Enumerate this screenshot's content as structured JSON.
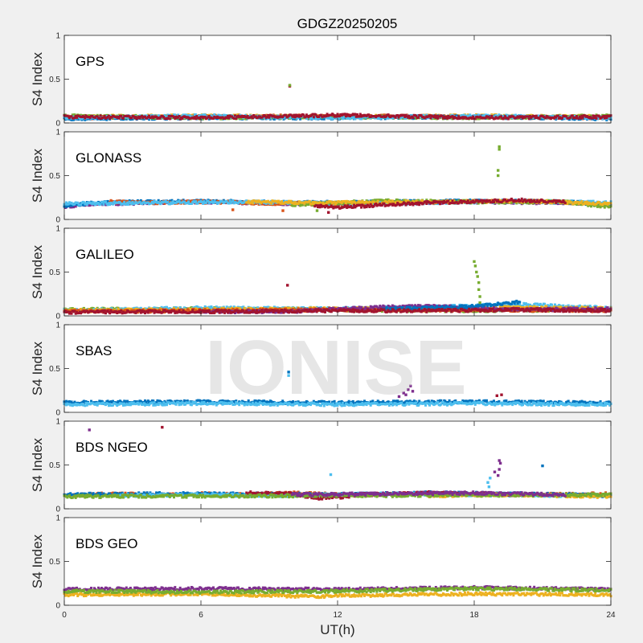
{
  "figure": {
    "title": "GDGZ20250205",
    "xlabel": "UT(h)",
    "watermark": "IONISE",
    "background": "#f0f0f0"
  },
  "chart_data": [
    {
      "type": "scatter",
      "panel": "GPS",
      "title": "GPS",
      "xlabel": "",
      "ylabel": "S4 Index",
      "xlim": [
        0,
        24
      ],
      "ylim": [
        0,
        1
      ],
      "xticks": [],
      "yticks": [
        0,
        0.5,
        1
      ],
      "ytick_labels": [
        "0",
        "0.5",
        "1"
      ],
      "grid": false,
      "baseline_segments": [
        {
          "color": "#EDB120",
          "x": [
            0,
            6,
            12,
            18,
            24
          ],
          "y": [
            0.07,
            0.08,
            0.07,
            0.08,
            0.07
          ]
        },
        {
          "color": "#D95319",
          "x": [
            0,
            6,
            12,
            18,
            24
          ],
          "y": [
            0.06,
            0.07,
            0.08,
            0.07,
            0.06
          ]
        },
        {
          "color": "#0072BD",
          "x": [
            0,
            6,
            12,
            18,
            24
          ],
          "y": [
            0.05,
            0.06,
            0.06,
            0.07,
            0.05
          ]
        },
        {
          "color": "#77AC30",
          "x": [
            0,
            6,
            12,
            18,
            24
          ],
          "y": [
            0.08,
            0.06,
            0.07,
            0.06,
            0.08
          ]
        },
        {
          "color": "#4DBEEE",
          "x": [
            0,
            6,
            12,
            18,
            24
          ],
          "y": [
            0.06,
            0.08,
            0.06,
            0.08,
            0.06
          ]
        },
        {
          "color": "#A2142F",
          "x": [
            0,
            6,
            12,
            18,
            24
          ],
          "y": [
            0.07,
            0.06,
            0.09,
            0.06,
            0.07
          ]
        }
      ],
      "outliers": [
        {
          "x": 9.9,
          "y": 0.42,
          "color": "#A2142F"
        },
        {
          "x": 9.9,
          "y": 0.43,
          "color": "#77AC30"
        }
      ]
    },
    {
      "type": "scatter",
      "panel": "GLONASS",
      "title": "GLONASS",
      "xlabel": "",
      "ylabel": "S4 Index",
      "xlim": [
        0,
        24
      ],
      "ylim": [
        0,
        1
      ],
      "xticks": [],
      "yticks": [
        0,
        0.5,
        1
      ],
      "ytick_labels": [
        "0",
        "0.5",
        "1"
      ],
      "grid": false,
      "baseline_segments": [
        {
          "color": "#7E2F8E",
          "x": [
            0,
            2,
            4,
            6,
            10,
            14,
            18,
            22,
            24
          ],
          "y": [
            0.15,
            0.18,
            0.19,
            0.2,
            0.18,
            0.19,
            0.2,
            0.19,
            0.18
          ]
        },
        {
          "color": "#0072BD",
          "x": [
            0,
            2,
            4,
            6,
            10,
            14,
            18,
            22,
            24
          ],
          "y": [
            0.16,
            0.2,
            0.2,
            0.21,
            0.19,
            0.2,
            0.21,
            0.2,
            0.17
          ]
        },
        {
          "color": "#D95319",
          "x": [
            2,
            4,
            6,
            8,
            10,
            12,
            14
          ],
          "y": [
            0.2,
            0.19,
            0.2,
            0.19,
            0.18,
            0.17,
            0.19
          ]
        },
        {
          "color": "#4DBEEE",
          "x": [
            0,
            4,
            8,
            12,
            16,
            20,
            24
          ],
          "y": [
            0.18,
            0.19,
            0.2,
            0.18,
            0.19,
            0.21,
            0.19
          ]
        },
        {
          "color": "#77AC30",
          "x": [
            10,
            14,
            18,
            22,
            24
          ],
          "y": [
            0.17,
            0.21,
            0.2,
            0.2,
            0.14
          ]
        },
        {
          "color": "#EDB120",
          "x": [
            8,
            12,
            16,
            20,
            24
          ],
          "y": [
            0.2,
            0.19,
            0.2,
            0.21,
            0.18
          ]
        },
        {
          "color": "#A2142F",
          "x": [
            11,
            12,
            16,
            20,
            22
          ],
          "y": [
            0.15,
            0.14,
            0.19,
            0.22,
            0.2
          ]
        }
      ],
      "outliers": [
        {
          "x": 19.1,
          "y": 0.83,
          "color": "#77AC30"
        },
        {
          "x": 19.1,
          "y": 0.8,
          "color": "#77AC30"
        },
        {
          "x": 19.05,
          "y": 0.56,
          "color": "#77AC30"
        },
        {
          "x": 19.05,
          "y": 0.5,
          "color": "#77AC30"
        },
        {
          "x": 9.6,
          "y": 0.1,
          "color": "#D95319"
        },
        {
          "x": 11.1,
          "y": 0.1,
          "color": "#77AC30"
        },
        {
          "x": 11.6,
          "y": 0.08,
          "color": "#A2142F"
        },
        {
          "x": 7.4,
          "y": 0.11,
          "color": "#D95319"
        }
      ]
    },
    {
      "type": "scatter",
      "panel": "GALILEO",
      "title": "GALILEO",
      "xlabel": "",
      "ylabel": "S4 Index",
      "xlim": [
        0,
        24
      ],
      "ylim": [
        0,
        1
      ],
      "xticks": [],
      "yticks": [
        0,
        0.5,
        1
      ],
      "ytick_labels": [
        "0",
        "0.5",
        "1"
      ],
      "grid": false,
      "baseline_segments": [
        {
          "color": "#77AC30",
          "x": [
            0,
            6,
            12,
            18,
            24
          ],
          "y": [
            0.07,
            0.08,
            0.07,
            0.06,
            0.07
          ]
        },
        {
          "color": "#4DBEEE",
          "x": [
            0,
            6,
            12,
            16,
            20,
            24
          ],
          "y": [
            0.06,
            0.09,
            0.08,
            0.1,
            0.13,
            0.09
          ]
        },
        {
          "color": "#EDB120",
          "x": [
            0,
            6,
            12,
            18,
            20,
            24
          ],
          "y": [
            0.06,
            0.07,
            0.08,
            0.08,
            0.1,
            0.08
          ]
        },
        {
          "color": "#D95319",
          "x": [
            0,
            6,
            12,
            18,
            24
          ],
          "y": [
            0.05,
            0.06,
            0.07,
            0.07,
            0.06
          ]
        },
        {
          "color": "#7E2F8E",
          "x": [
            6,
            10,
            12,
            14,
            16,
            18,
            20,
            24
          ],
          "y": [
            0.05,
            0.05,
            0.08,
            0.1,
            0.11,
            0.09,
            0.07,
            0.08
          ]
        },
        {
          "color": "#0072BD",
          "x": [
            14,
            16,
            18,
            19,
            20
          ],
          "y": [
            0.08,
            0.09,
            0.11,
            0.13,
            0.16
          ]
        },
        {
          "color": "#A2142F",
          "x": [
            0,
            4,
            8,
            12,
            16,
            20,
            24
          ],
          "y": [
            0.04,
            0.05,
            0.05,
            0.06,
            0.06,
            0.07,
            0.06
          ]
        }
      ],
      "outliers": [
        {
          "x": 18.0,
          "y": 0.62,
          "color": "#77AC30"
        },
        {
          "x": 18.05,
          "y": 0.57,
          "color": "#77AC30"
        },
        {
          "x": 18.1,
          "y": 0.5,
          "color": "#77AC30"
        },
        {
          "x": 18.15,
          "y": 0.45,
          "color": "#77AC30"
        },
        {
          "x": 18.2,
          "y": 0.38,
          "color": "#77AC30"
        },
        {
          "x": 18.2,
          "y": 0.3,
          "color": "#77AC30"
        },
        {
          "x": 18.25,
          "y": 0.22,
          "color": "#77AC30"
        },
        {
          "x": 18.25,
          "y": 0.15,
          "color": "#77AC30"
        },
        {
          "x": 9.8,
          "y": 0.35,
          "color": "#A2142F"
        }
      ]
    },
    {
      "type": "scatter",
      "panel": "SBAS",
      "title": "SBAS",
      "xlabel": "",
      "ylabel": "S4 Index",
      "xlim": [
        0,
        24
      ],
      "ylim": [
        0,
        1
      ],
      "xticks": [],
      "yticks": [
        0,
        0.5,
        1
      ],
      "ytick_labels": [
        "0",
        "0.5",
        "1"
      ],
      "grid": false,
      "baseline_segments": [
        {
          "color": "#0072BD",
          "x": [
            0,
            6,
            12,
            18,
            24
          ],
          "y": [
            0.11,
            0.12,
            0.11,
            0.12,
            0.11
          ]
        },
        {
          "color": "#4DBEEE",
          "x": [
            0,
            6,
            12,
            18,
            24
          ],
          "y": [
            0.09,
            0.1,
            0.09,
            0.1,
            0.09
          ]
        }
      ],
      "outliers": [
        {
          "x": 9.85,
          "y": 0.46,
          "color": "#0072BD"
        },
        {
          "x": 9.85,
          "y": 0.42,
          "color": "#4DBEEE"
        },
        {
          "x": 14.7,
          "y": 0.18,
          "color": "#7E2F8E"
        },
        {
          "x": 14.9,
          "y": 0.22,
          "color": "#7E2F8E"
        },
        {
          "x": 15.1,
          "y": 0.26,
          "color": "#7E2F8E"
        },
        {
          "x": 15.2,
          "y": 0.3,
          "color": "#7E2F8E"
        },
        {
          "x": 15.3,
          "y": 0.24,
          "color": "#7E2F8E"
        },
        {
          "x": 15.0,
          "y": 0.2,
          "color": "#7E2F8E"
        },
        {
          "x": 19.0,
          "y": 0.19,
          "color": "#A2142F"
        },
        {
          "x": 19.2,
          "y": 0.2,
          "color": "#A2142F"
        }
      ]
    },
    {
      "type": "scatter",
      "panel": "BDS NGEO",
      "title": "BDS NGEO",
      "xlabel": "",
      "ylabel": "S4 Index",
      "xlim": [
        0,
        24
      ],
      "ylim": [
        0,
        1
      ],
      "xticks": [],
      "yticks": [
        0,
        0.5,
        1
      ],
      "ytick_labels": [
        "0",
        "0.5",
        "1"
      ],
      "grid": false,
      "baseline_segments": [
        {
          "color": "#D95319",
          "x": [
            0,
            2,
            4,
            6,
            8,
            10,
            12,
            16,
            20,
            24
          ],
          "y": [
            0.15,
            0.17,
            0.16,
            0.17,
            0.16,
            0.18,
            0.16,
            0.17,
            0.16,
            0.17
          ]
        },
        {
          "color": "#0072BD",
          "x": [
            0,
            4,
            8,
            12,
            16,
            20,
            24
          ],
          "y": [
            0.16,
            0.17,
            0.17,
            0.16,
            0.18,
            0.17,
            0.15
          ]
        },
        {
          "color": "#4DBEEE",
          "x": [
            2,
            6,
            10,
            14,
            18,
            22
          ],
          "y": [
            0.15,
            0.16,
            0.15,
            0.17,
            0.16,
            0.15
          ]
        },
        {
          "color": "#A2142F",
          "x": [
            8,
            10,
            11,
            12,
            13,
            16,
            20
          ],
          "y": [
            0.18,
            0.17,
            0.12,
            0.13,
            0.16,
            0.18,
            0.16
          ]
        },
        {
          "color": "#EDB120",
          "x": [
            16,
            20,
            24
          ],
          "y": [
            0.15,
            0.16,
            0.14
          ]
        },
        {
          "color": "#77AC30",
          "x": [
            0,
            12,
            24
          ],
          "y": [
            0.14,
            0.15,
            0.16
          ]
        },
        {
          "color": "#7E2F8E",
          "x": [
            10,
            14,
            18,
            22
          ],
          "y": [
            0.16,
            0.17,
            0.18,
            0.16
          ]
        }
      ],
      "outliers": [
        {
          "x": 1.1,
          "y": 0.9,
          "color": "#7E2F8E"
        },
        {
          "x": 4.3,
          "y": 0.93,
          "color": "#A2142F"
        },
        {
          "x": 11.7,
          "y": 0.39,
          "color": "#4DBEEE"
        },
        {
          "x": 21.0,
          "y": 0.49,
          "color": "#0072BD"
        },
        {
          "x": 19.1,
          "y": 0.55,
          "color": "#7E2F8E"
        },
        {
          "x": 19.15,
          "y": 0.52,
          "color": "#7E2F8E"
        },
        {
          "x": 19.1,
          "y": 0.45,
          "color": "#7E2F8E"
        },
        {
          "x": 19.05,
          "y": 0.38,
          "color": "#7E2F8E"
        },
        {
          "x": 18.7,
          "y": 0.35,
          "color": "#4DBEEE"
        },
        {
          "x": 18.6,
          "y": 0.3,
          "color": "#4DBEEE"
        },
        {
          "x": 18.65,
          "y": 0.25,
          "color": "#4DBEEE"
        },
        {
          "x": 18.9,
          "y": 0.42,
          "color": "#7E2F8E"
        }
      ]
    },
    {
      "type": "scatter",
      "panel": "BDS GEO",
      "title": "BDS GEO",
      "xlabel": "UT(h)",
      "ylabel": "S4 Index",
      "xlim": [
        0,
        24
      ],
      "ylim": [
        0,
        1
      ],
      "xticks": [
        0,
        6,
        12,
        18,
        24
      ],
      "xtick_labels": [
        "0",
        "6",
        "12",
        "18",
        "24"
      ],
      "yticks": [
        0,
        0.5,
        1
      ],
      "ytick_labels": [
        "0",
        "0.5",
        "1"
      ],
      "grid": false,
      "baseline_segments": [
        {
          "color": "#EDB120",
          "x": [
            0,
            6,
            11,
            12,
            18,
            24
          ],
          "y": [
            0.12,
            0.13,
            0.1,
            0.11,
            0.13,
            0.12
          ]
        },
        {
          "color": "#7E2F8E",
          "x": [
            0,
            6,
            12,
            18,
            24
          ],
          "y": [
            0.18,
            0.19,
            0.18,
            0.2,
            0.18
          ]
        },
        {
          "color": "#77AC30",
          "x": [
            0,
            6,
            12,
            18,
            24
          ],
          "y": [
            0.16,
            0.15,
            0.16,
            0.19,
            0.17
          ]
        }
      ],
      "outliers": []
    }
  ]
}
